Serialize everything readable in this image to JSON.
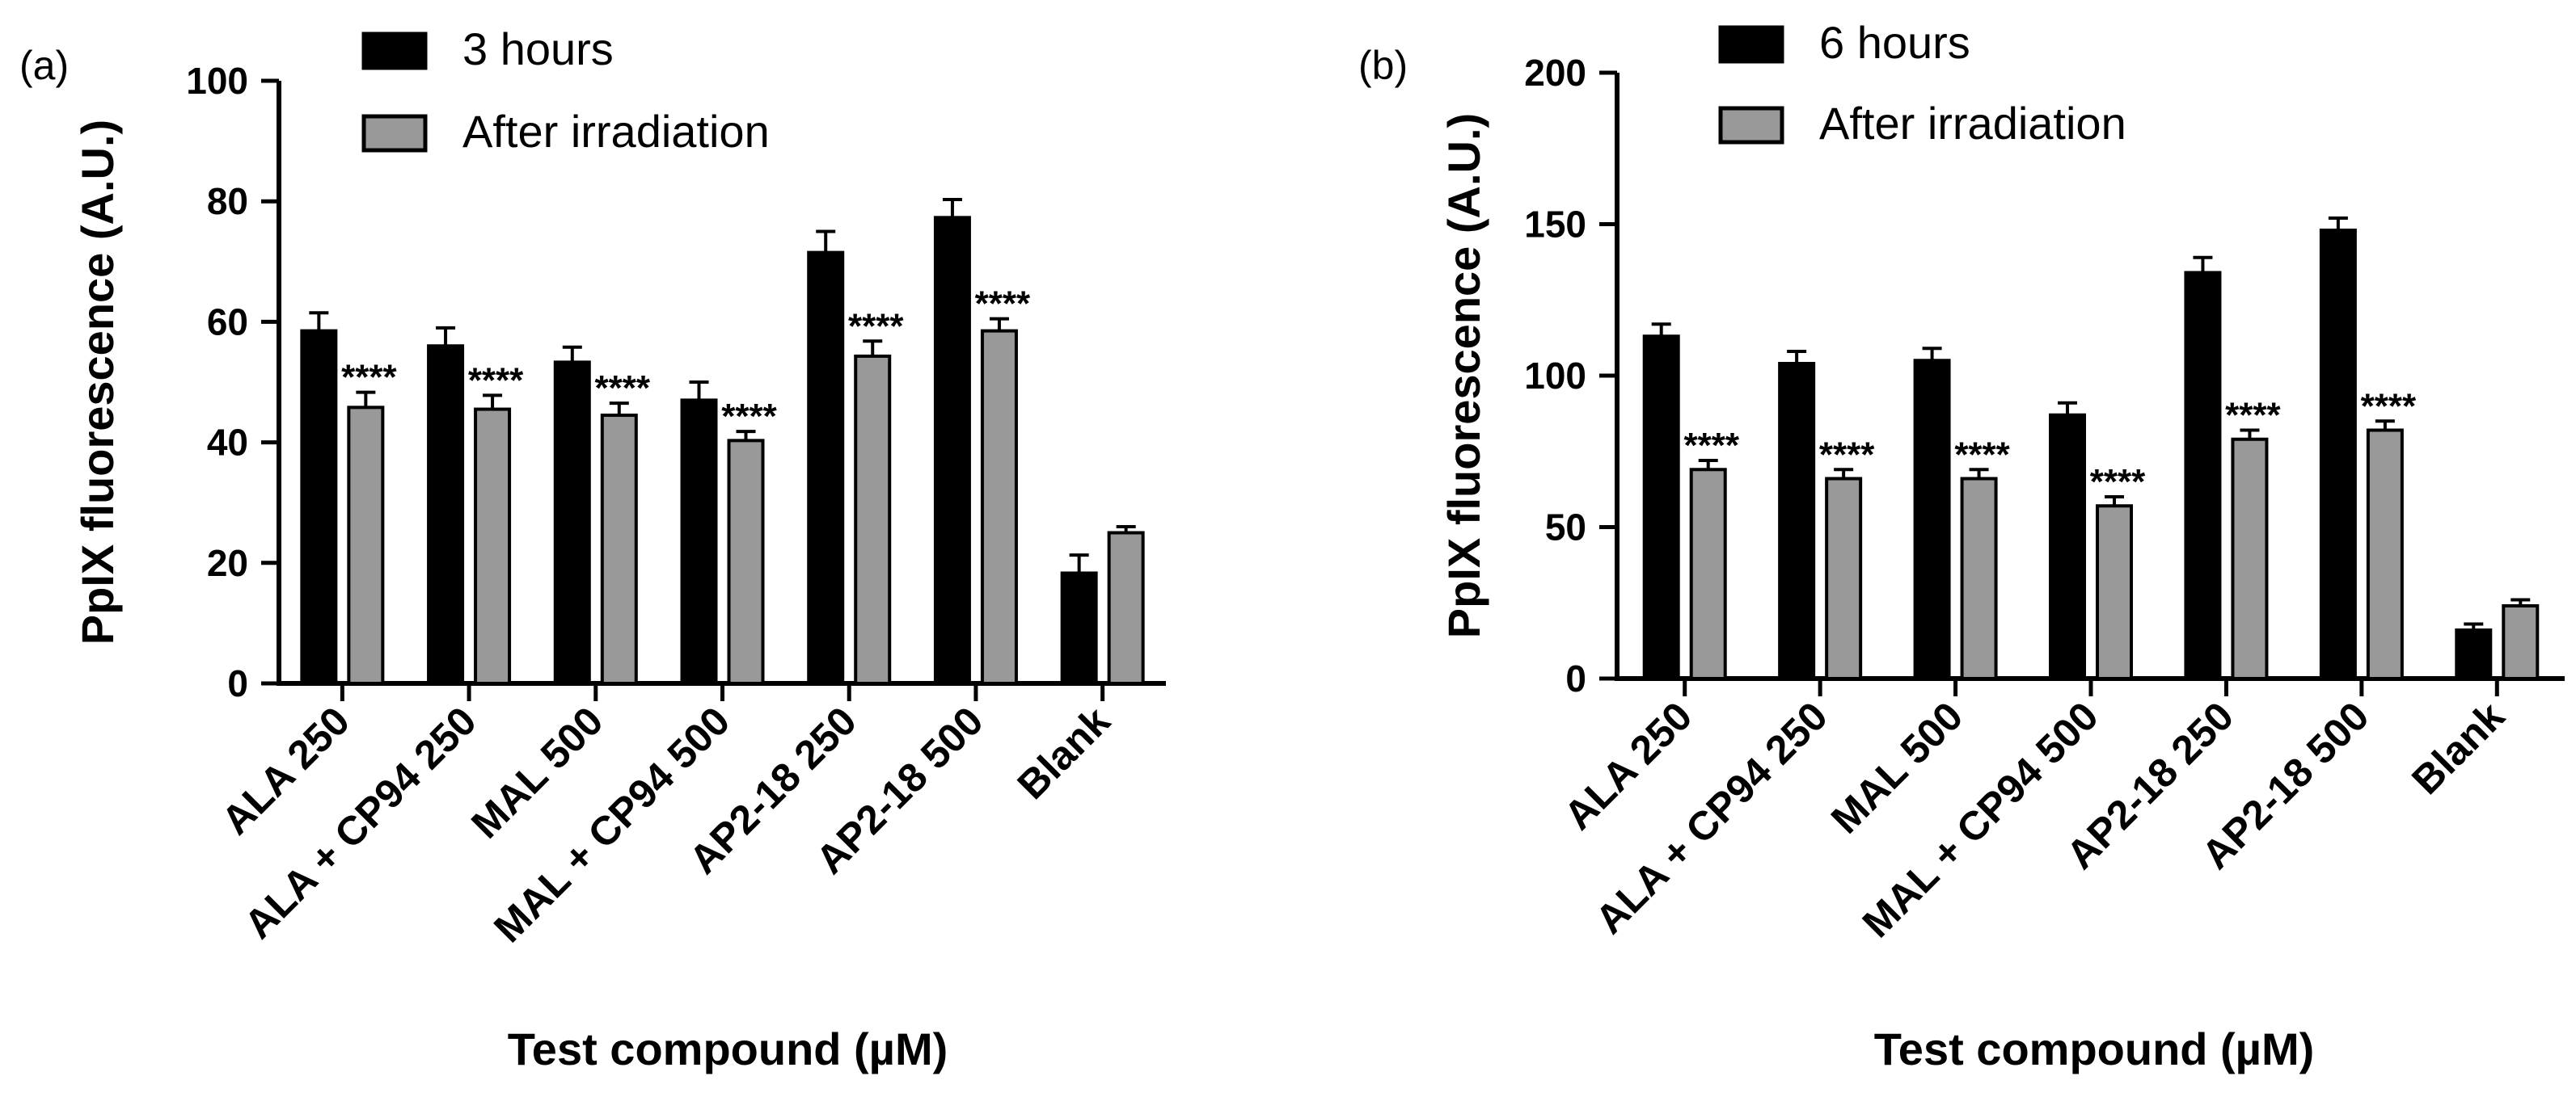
{
  "chart_data": [
    {
      "type": "bar",
      "panel_label": "(a)",
      "xlabel": "Test compound (µM)",
      "ylabel": "PpIX fluorescence (A.U.)",
      "ylim": [
        0,
        100
      ],
      "yticks": [
        0,
        20,
        40,
        60,
        80,
        100
      ],
      "categories": [
        "ALA 250",
        "ALA + CP94 250",
        "MAL 500",
        "MAL + CP94 500",
        "AP2-18 250",
        "AP2-18 500",
        "Blank"
      ],
      "significance": [
        "****",
        "****",
        "****",
        "****",
        "****",
        "****",
        ""
      ],
      "legend_position": "top",
      "series": [
        {
          "name": "3 hours",
          "color": "#000000",
          "values": [
            58.5,
            56,
            53.3,
            47,
            71.5,
            77.3,
            18.3
          ],
          "errors": [
            3,
            3,
            2.5,
            3,
            3.5,
            3,
            3
          ]
        },
        {
          "name": "After irradiation",
          "color": "#999999",
          "values": [
            45.8,
            45.5,
            44.5,
            40.3,
            54.3,
            58.5,
            25
          ],
          "errors": [
            2.5,
            2.3,
            2,
            1.5,
            2.5,
            2,
            1
          ]
        }
      ]
    },
    {
      "type": "bar",
      "panel_label": "(b)",
      "xlabel": "Test compound (µM)",
      "ylabel": "PpIX fluorescence (A.U.)",
      "ylim": [
        0,
        200
      ],
      "yticks": [
        0,
        50,
        100,
        150,
        200
      ],
      "categories": [
        "ALA 250",
        "ALA + CP94 250",
        "MAL 500",
        "MAL + CP94 500",
        "AP2-18 250",
        "AP2-18 500",
        "Blank"
      ],
      "significance": [
        "****",
        "****",
        "****",
        "****",
        "****",
        "****",
        ""
      ],
      "legend_position": "top",
      "series": [
        {
          "name": "6 hours",
          "color": "#000000",
          "values": [
            113,
            104,
            105,
            87,
            134,
            148,
            16
          ],
          "errors": [
            4,
            4,
            4,
            4,
            5,
            4,
            2
          ]
        },
        {
          "name": "After irradiation",
          "color": "#999999",
          "values": [
            69,
            66,
            66,
            57,
            79,
            82,
            24
          ],
          "errors": [
            3,
            3,
            3,
            3,
            3,
            3,
            2
          ]
        }
      ]
    }
  ]
}
